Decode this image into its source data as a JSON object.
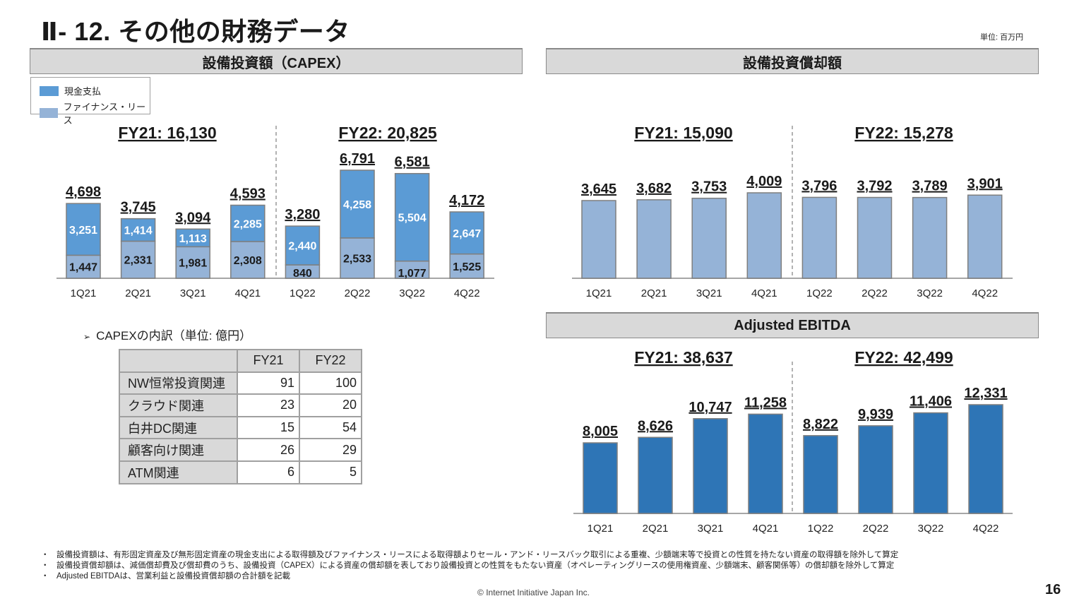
{
  "page": {
    "title": "Ⅱ- 12.  その他の財務データ",
    "unit_note": "単位: 百万円",
    "page_number": "16",
    "copyright": "© Internet Initiative Japan Inc."
  },
  "colors": {
    "cash_payment": "#5b9bd5",
    "finance_lease": "#95b3d7",
    "depreciation_bar": "#95b3d7",
    "ebitda_bar": "#2e75b6",
    "section_bar_bg": "#d9d9d9"
  },
  "sections": {
    "capex_title": "設備投資額（CAPEX）",
    "depreciation_title": "設備投資償却額",
    "ebitda_title": "Adjusted EBITDA"
  },
  "legend": {
    "items": [
      {
        "label": "現金支払",
        "color": "#5b9bd5"
      },
      {
        "label": "ファイナンス・リース",
        "color": "#95b3d7"
      }
    ]
  },
  "chart_data": [
    {
      "type": "bar",
      "stacked": true,
      "title": "設備投資額（CAPEX）",
      "categories": [
        "1Q21",
        "2Q21",
        "3Q21",
        "4Q21",
        "1Q22",
        "2Q22",
        "3Q22",
        "4Q22"
      ],
      "series": [
        {
          "name": "ファイナンス・リース",
          "values": [
            1447,
            2331,
            1981,
            2308,
            840,
            2533,
            1077,
            1525
          ]
        },
        {
          "name": "現金支払",
          "values": [
            3251,
            1414,
            1113,
            2285,
            2440,
            4258,
            5504,
            2647
          ]
        }
      ],
      "totals": [
        4698,
        3745,
        3094,
        4593,
        3280,
        6791,
        6581,
        4172
      ],
      "total_labels": [
        "4,698",
        "3,745",
        "3,094",
        "4,593",
        "3,280",
        "6,791",
        "6,581",
        "4,172"
      ],
      "finance_labels": [
        "1,447",
        "2,331",
        "1,981",
        "2,308",
        "840",
        "2,533",
        "1,077",
        "1,525"
      ],
      "cash_labels": [
        "3,251",
        "1,414",
        "1,113",
        "2,285",
        "2,440",
        "4,258",
        "5,504",
        "2,647"
      ],
      "fiscal_year_labels": [
        "FY21: 16,130",
        "FY22: 20,825"
      ],
      "fiscal_year_totals": [
        16130,
        20825
      ],
      "ylim": [
        0,
        7000
      ],
      "grid": false,
      "legend": "top-left",
      "unit": "百万円"
    },
    {
      "type": "bar",
      "title": "設備投資償却額",
      "categories": [
        "1Q21",
        "2Q21",
        "3Q21",
        "4Q21",
        "1Q22",
        "2Q22",
        "3Q22",
        "4Q22"
      ],
      "values": [
        3645,
        3682,
        3753,
        4009,
        3796,
        3792,
        3789,
        3901
      ],
      "value_labels": [
        "3,645",
        "3,682",
        "3,753",
        "4,009",
        "3,796",
        "3,792",
        "3,789",
        "3,901"
      ],
      "fiscal_year_labels": [
        "FY21: 15,090",
        "FY22: 15,278"
      ],
      "fiscal_year_totals": [
        15090,
        15278
      ],
      "ylim": [
        0,
        5500
      ],
      "grid": false,
      "unit": "百万円"
    },
    {
      "type": "bar",
      "title": "Adjusted EBITDA",
      "categories": [
        "1Q21",
        "2Q21",
        "3Q21",
        "4Q21",
        "1Q22",
        "2Q22",
        "3Q22",
        "4Q22"
      ],
      "values": [
        8005,
        8626,
        10747,
        11258,
        8822,
        9939,
        11406,
        12331
      ],
      "value_labels": [
        "8,005",
        "8,626",
        "10,747",
        "11,258",
        "8,822",
        "9,939",
        "11,406",
        "12,331"
      ],
      "fiscal_year_labels": [
        "FY21: 38,637",
        "FY22: 42,499"
      ],
      "fiscal_year_totals": [
        38637,
        42499
      ],
      "ylim": [
        0,
        13500
      ],
      "grid": false,
      "unit": "百万円"
    }
  ],
  "breakdown": {
    "title": "CAPEXの内訳（単位: 億円）",
    "bullet": "➢",
    "columns": [
      "FY21",
      "FY22"
    ],
    "rows": [
      {
        "label": "NW恒常投資関連",
        "values": [
          "91",
          "100"
        ]
      },
      {
        "label": "クラウド関連",
        "values": [
          "23",
          "20"
        ]
      },
      {
        "label": "白井DC関連",
        "values": [
          "15",
          "54"
        ]
      },
      {
        "label": "顧客向け関連",
        "values": [
          "26",
          "29"
        ]
      },
      {
        "label": "ATM関連",
        "values": [
          "6",
          "5"
        ]
      }
    ]
  },
  "notes": [
    "設備投資額は、有形固定資産及び無形固定資産の現金支出による取得額及びファイナンス・リースによる取得額よりセール・アンド・リースバック取引による重複、少額端末等で投資との性質を持たない資産の取得額を除外して算定",
    "設備投資償却額は、減価償却費及び償却費のうち、設備投資（CAPEX）による資産の償却額を表しており設備投資との性質をもたない資産（オペレーティングリースの使用権資産、少額端末、顧客関係等）の償却額を除外して算定",
    "Adjusted EBITDAは、営業利益と設備投資償却額の合計額を記載"
  ],
  "note_bullet": "・"
}
